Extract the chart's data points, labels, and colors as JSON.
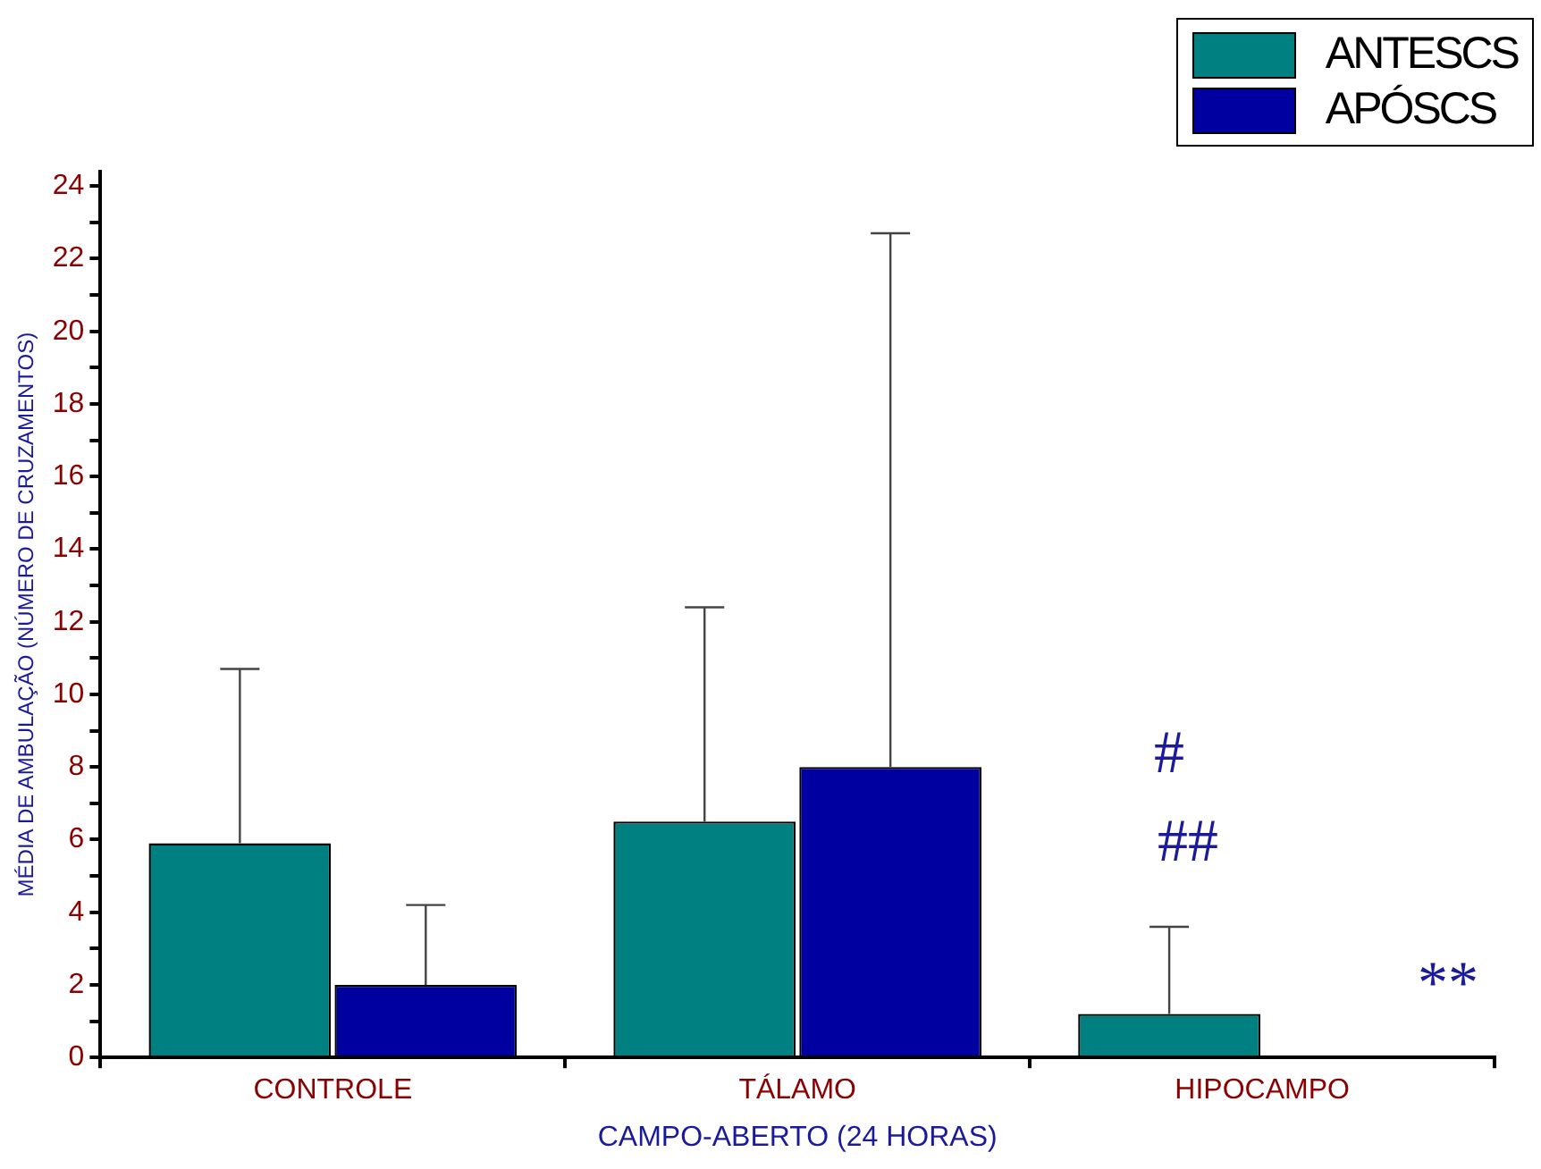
{
  "chart_data": {
    "type": "bar",
    "xlabel": "CAMPO-ABERTO (24 HORAS)",
    "ylabel": "MÉDIA DE AMBULAÇÃO (NÚMERO DE CRUZAMENTOS)",
    "categories": [
      "CONTROLE",
      "TÁLAMO",
      "HIPOCAMPO"
    ],
    "series": [
      {
        "name": "ANTESCS",
        "color": "#008080",
        "values": [
          5.9,
          6.5,
          1.2
        ],
        "errors": [
          [
            5.9,
            10.7
          ],
          [
            6.5,
            12.4
          ],
          [
            1.2,
            3.6
          ]
        ]
      },
      {
        "name": "APÓSCS",
        "color": "#0000a0",
        "values": [
          2.0,
          8.0,
          null
        ],
        "errors": [
          [
            2.0,
            4.2
          ],
          [
            8.0,
            22.7
          ],
          null
        ]
      }
    ],
    "ylim": [
      0,
      24.4
    ],
    "yticks": [
      0,
      {
        "value": 1,
        "label": null
      },
      2,
      {
        "value": 3,
        "label": null
      },
      4,
      {
        "value": 5,
        "label": null
      },
      6,
      {
        "value": 7,
        "label": null
      },
      8,
      {
        "value": 9,
        "label": null
      },
      10,
      {
        "value": 11,
        "label": null
      },
      12,
      {
        "value": 13,
        "label": null
      },
      14,
      {
        "value": 15,
        "label": null
      },
      16,
      {
        "value": 17,
        "label": null
      },
      18,
      {
        "value": 19,
        "label": null
      },
      20,
      {
        "value": 21,
        "label": null
      },
      22,
      {
        "value": 23,
        "label": null
      },
      24
    ],
    "annotations": [
      "#",
      "##",
      "**"
    ],
    "grid": false,
    "legend": "top right"
  }
}
